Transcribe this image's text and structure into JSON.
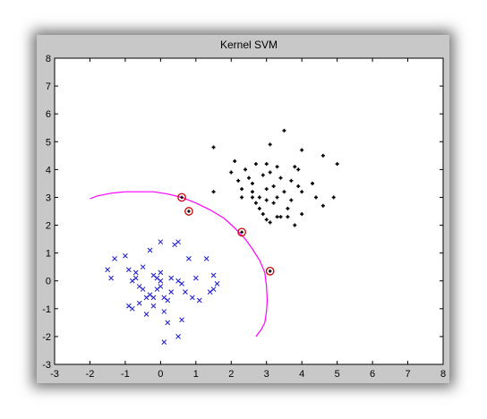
{
  "window": {
    "background": "#c8c8c8"
  },
  "chart_data": {
    "type": "scatter",
    "title": "Kernel SVM",
    "xlabel": "",
    "ylabel": "",
    "xlim": [
      -3,
      8
    ],
    "ylim": [
      -3,
      8
    ],
    "xticks": [
      "-3",
      "-2",
      "-1",
      "0",
      "1",
      "2",
      "3",
      "4",
      "5",
      "6",
      "7",
      "8"
    ],
    "yticks": [
      "-3",
      "-2",
      "-1",
      "0",
      "1",
      "2",
      "3",
      "4",
      "5",
      "6",
      "7",
      "8"
    ],
    "grid": false,
    "legend": "none",
    "colors": {
      "class_positive": "#000000",
      "class_negative": "#1a1acc",
      "decision_boundary": "#ff00ff",
      "support_vector_ring": "#cc0000"
    },
    "series": [
      {
        "marker": "plus",
        "points": [
          [
            1.5,
            4.8
          ],
          [
            1.5,
            3.2
          ],
          [
            2.0,
            3.9
          ],
          [
            2.1,
            4.3
          ],
          [
            2.2,
            3.6
          ],
          [
            2.3,
            3.3
          ],
          [
            2.3,
            3.0
          ],
          [
            2.4,
            4.0
          ],
          [
            2.5,
            3.7
          ],
          [
            2.6,
            3.5
          ],
          [
            2.6,
            3.2
          ],
          [
            2.7,
            4.2
          ],
          [
            2.7,
            2.8
          ],
          [
            2.8,
            3.0
          ],
          [
            2.8,
            2.6
          ],
          [
            2.9,
            3.8
          ],
          [
            2.9,
            2.4
          ],
          [
            3.0,
            4.2
          ],
          [
            3.0,
            3.3
          ],
          [
            3.0,
            2.9
          ],
          [
            3.1,
            3.9
          ],
          [
            3.1,
            2.1
          ],
          [
            3.2,
            3.4
          ],
          [
            3.2,
            2.8
          ],
          [
            3.3,
            4.1
          ],
          [
            3.3,
            3.0
          ],
          [
            3.3,
            2.3
          ],
          [
            3.4,
            3.7
          ],
          [
            3.4,
            2.3
          ],
          [
            3.5,
            5.4
          ],
          [
            3.5,
            3.2
          ],
          [
            3.6,
            2.3
          ],
          [
            3.6,
            2.6
          ],
          [
            3.7,
            3.6
          ],
          [
            3.7,
            2.9
          ],
          [
            3.8,
            4.1
          ],
          [
            3.8,
            2.0
          ],
          [
            3.9,
            4.0
          ],
          [
            3.9,
            3.4
          ],
          [
            4.0,
            4.7
          ],
          [
            4.0,
            3.2
          ],
          [
            4.0,
            2.4
          ],
          [
            4.3,
            3.5
          ],
          [
            4.4,
            3.0
          ],
          [
            4.6,
            4.5
          ],
          [
            4.6,
            2.7
          ],
          [
            4.9,
            3.0
          ],
          [
            5.0,
            4.2
          ],
          [
            3.1,
            4.9
          ],
          [
            2.6,
            3.0
          ],
          [
            3.0,
            2.2
          ]
        ]
      },
      {
        "marker": "x",
        "points": [
          [
            -1.5,
            0.4
          ],
          [
            -1.4,
            0.1
          ],
          [
            -1.3,
            0.8
          ],
          [
            -1.0,
            0.9
          ],
          [
            -0.9,
            0.4
          ],
          [
            -0.9,
            -0.9
          ],
          [
            -0.8,
            0.0
          ],
          [
            -0.8,
            -1.0
          ],
          [
            -0.7,
            0.3
          ],
          [
            -0.6,
            -0.2
          ],
          [
            -0.6,
            -0.8
          ],
          [
            -0.5,
            0.5
          ],
          [
            -0.5,
            -0.3
          ],
          [
            -0.4,
            -1.2
          ],
          [
            -0.4,
            -0.6
          ],
          [
            -0.3,
            1.1
          ],
          [
            -0.3,
            -0.5
          ],
          [
            -0.2,
            0.2
          ],
          [
            -0.2,
            -0.9
          ],
          [
            -0.1,
            0.1
          ],
          [
            -0.1,
            -0.3
          ],
          [
            0.0,
            1.4
          ],
          [
            0.0,
            0.3
          ],
          [
            0.0,
            -0.2
          ],
          [
            0.1,
            -0.6
          ],
          [
            0.1,
            -1.1
          ],
          [
            0.1,
            -2.2
          ],
          [
            0.2,
            -0.7
          ],
          [
            0.2,
            -1.5
          ],
          [
            0.3,
            0.1
          ],
          [
            0.3,
            -0.4
          ],
          [
            0.4,
            1.3
          ],
          [
            0.5,
            1.4
          ],
          [
            0.5,
            0.0
          ],
          [
            0.6,
            -0.1
          ],
          [
            0.6,
            -1.4
          ],
          [
            0.7,
            -0.4
          ],
          [
            0.8,
            0.8
          ],
          [
            0.9,
            -0.6
          ],
          [
            1.0,
            0.1
          ],
          [
            1.1,
            -0.7
          ],
          [
            1.3,
            0.8
          ],
          [
            1.4,
            -0.4
          ],
          [
            1.5,
            -0.3
          ],
          [
            1.5,
            0.2
          ],
          [
            1.6,
            -0.1
          ],
          [
            0.5,
            -2.0
          ],
          [
            -0.2,
            -0.6
          ],
          [
            0.0,
            0.0
          ],
          [
            -0.7,
            0.1
          ]
        ]
      },
      {
        "marker": "support-ring",
        "points": [
          [
            0.6,
            3.0
          ],
          [
            0.8,
            2.5
          ],
          [
            2.3,
            1.75
          ],
          [
            3.1,
            0.35
          ]
        ]
      }
    ],
    "decision_boundary": {
      "points": [
        [
          -2.0,
          2.95
        ],
        [
          -1.8,
          3.05
        ],
        [
          -1.4,
          3.15
        ],
        [
          -1.0,
          3.2
        ],
        [
          -0.6,
          3.2
        ],
        [
          -0.2,
          3.2
        ],
        [
          0.2,
          3.12
        ],
        [
          0.6,
          3.0
        ],
        [
          1.0,
          2.8
        ],
        [
          1.4,
          2.55
        ],
        [
          1.8,
          2.25
        ],
        [
          2.1,
          1.9
        ],
        [
          2.4,
          1.5
        ],
        [
          2.6,
          1.15
        ],
        [
          2.8,
          0.75
        ],
        [
          2.95,
          0.3
        ],
        [
          3.0,
          -0.2
        ],
        [
          3.02,
          -0.7
        ],
        [
          3.0,
          -1.1
        ],
        [
          2.95,
          -1.5
        ],
        [
          2.85,
          -1.75
        ],
        [
          2.7,
          -2.0
        ]
      ]
    }
  }
}
